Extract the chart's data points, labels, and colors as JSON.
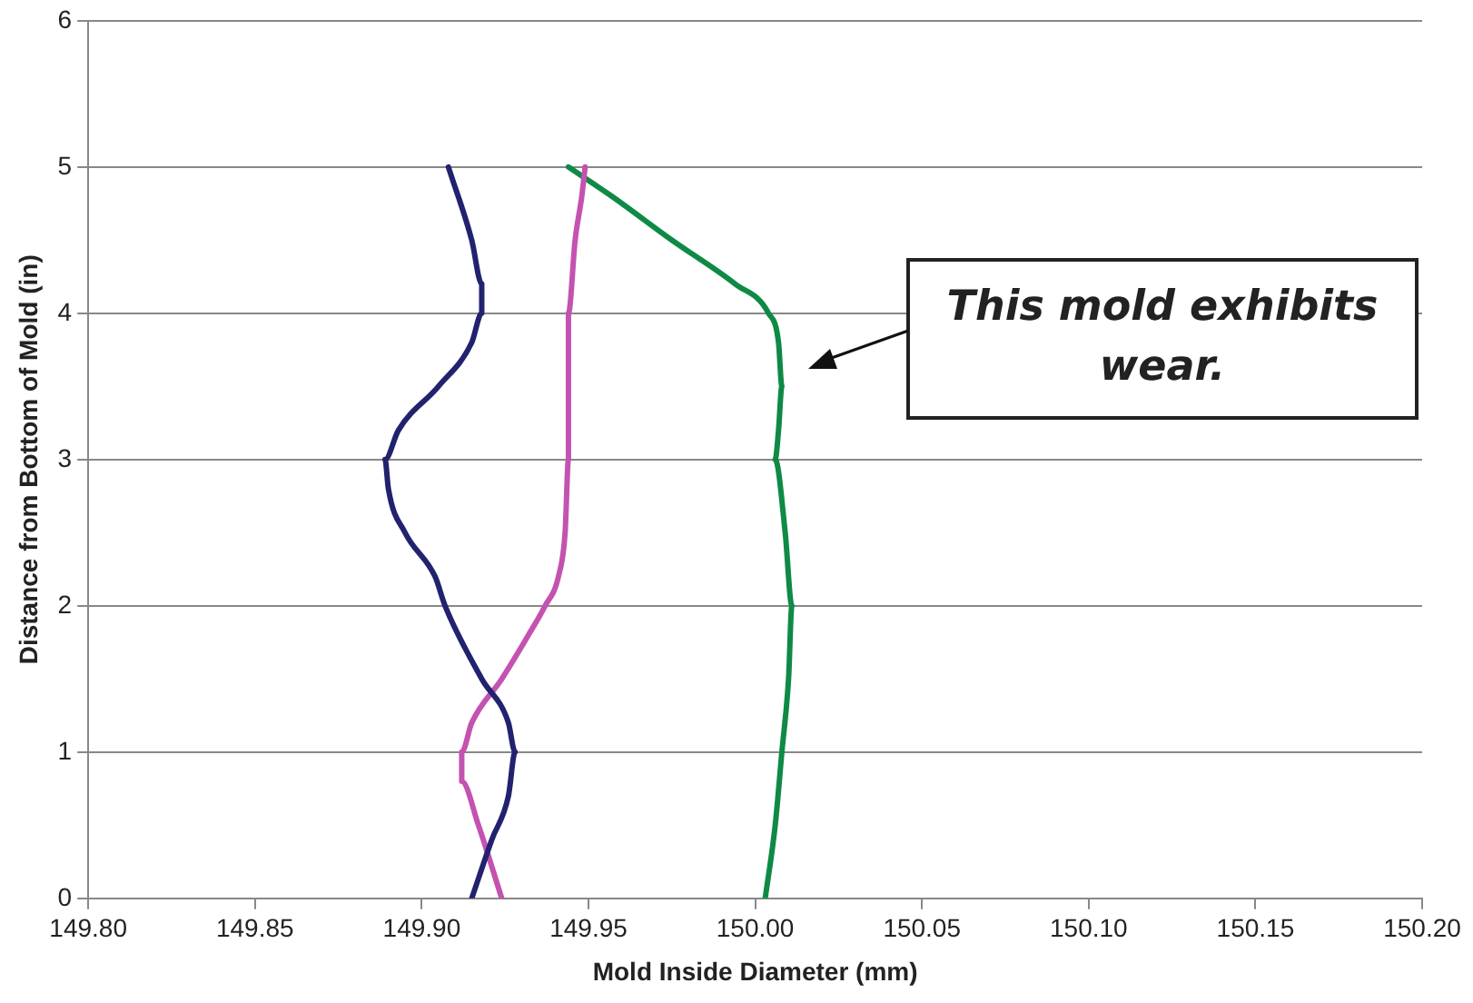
{
  "chart_data": {
    "type": "line",
    "xlabel": "Mold Inside Diameter (mm)",
    "ylabel": "Distance from Bottom of Mold (in)",
    "xlim": [
      149.8,
      150.2
    ],
    "xticks": [
      {
        "value": 149.8,
        "label": "149.80"
      },
      {
        "value": 149.85,
        "label": "149.85"
      },
      {
        "value": 149.9,
        "label": "149.90"
      },
      {
        "value": 149.95,
        "label": "149.95"
      },
      {
        "value": 150.0,
        "label": "150.00"
      },
      {
        "value": 150.05,
        "label": "150.05"
      },
      {
        "value": 150.1,
        "label": "150.10"
      },
      {
        "value": 150.15,
        "label": "150.15"
      },
      {
        "value": 150.2,
        "label": "150.20"
      }
    ],
    "ylim": [
      0,
      6
    ],
    "yticks": [
      0,
      1,
      2,
      3,
      4,
      5,
      6
    ],
    "grid": "y",
    "legend": false,
    "marker": "none",
    "line_style": "solid",
    "series": [
      {
        "color": "#22226e",
        "x": [
          149.915,
          149.921,
          149.926,
          149.928,
          149.926,
          149.918,
          149.907,
          149.904,
          149.895,
          149.89,
          149.889,
          149.893,
          149.905,
          149.915,
          149.918,
          149.918,
          149.915,
          149.908
        ],
        "values": [
          0,
          0.4,
          0.7,
          1,
          1.2,
          1.5,
          2,
          2.2,
          2.5,
          2.8,
          3,
          3.2,
          3.5,
          3.8,
          4,
          4.2,
          4.5,
          5
        ]
      },
      {
        "color": "#c452b0",
        "x": [
          149.924,
          149.917,
          149.912,
          149.912,
          149.915,
          149.924,
          149.932,
          149.937,
          149.941,
          149.943,
          149.944,
          149.944,
          149.946,
          149.948,
          149.949
        ],
        "values": [
          0,
          0.5,
          0.8,
          1,
          1.2,
          1.5,
          1.8,
          2,
          2.2,
          2.5,
          3,
          4,
          4.5,
          4.8,
          5
        ]
      },
      {
        "color": "#0e8a45",
        "x": [
          150.003,
          150.006,
          150.008,
          150.01,
          150.011,
          150.009,
          150.006,
          150.007,
          150.008,
          150.007,
          150.004,
          149.994,
          149.975,
          149.957,
          149.944
        ],
        "values": [
          0,
          0.5,
          1,
          1.5,
          2,
          2.5,
          3,
          3.2,
          3.5,
          3.8,
          4,
          4.2,
          4.5,
          4.8,
          5
        ]
      }
    ],
    "annotations": [
      "This mold exhibits wear."
    ]
  }
}
